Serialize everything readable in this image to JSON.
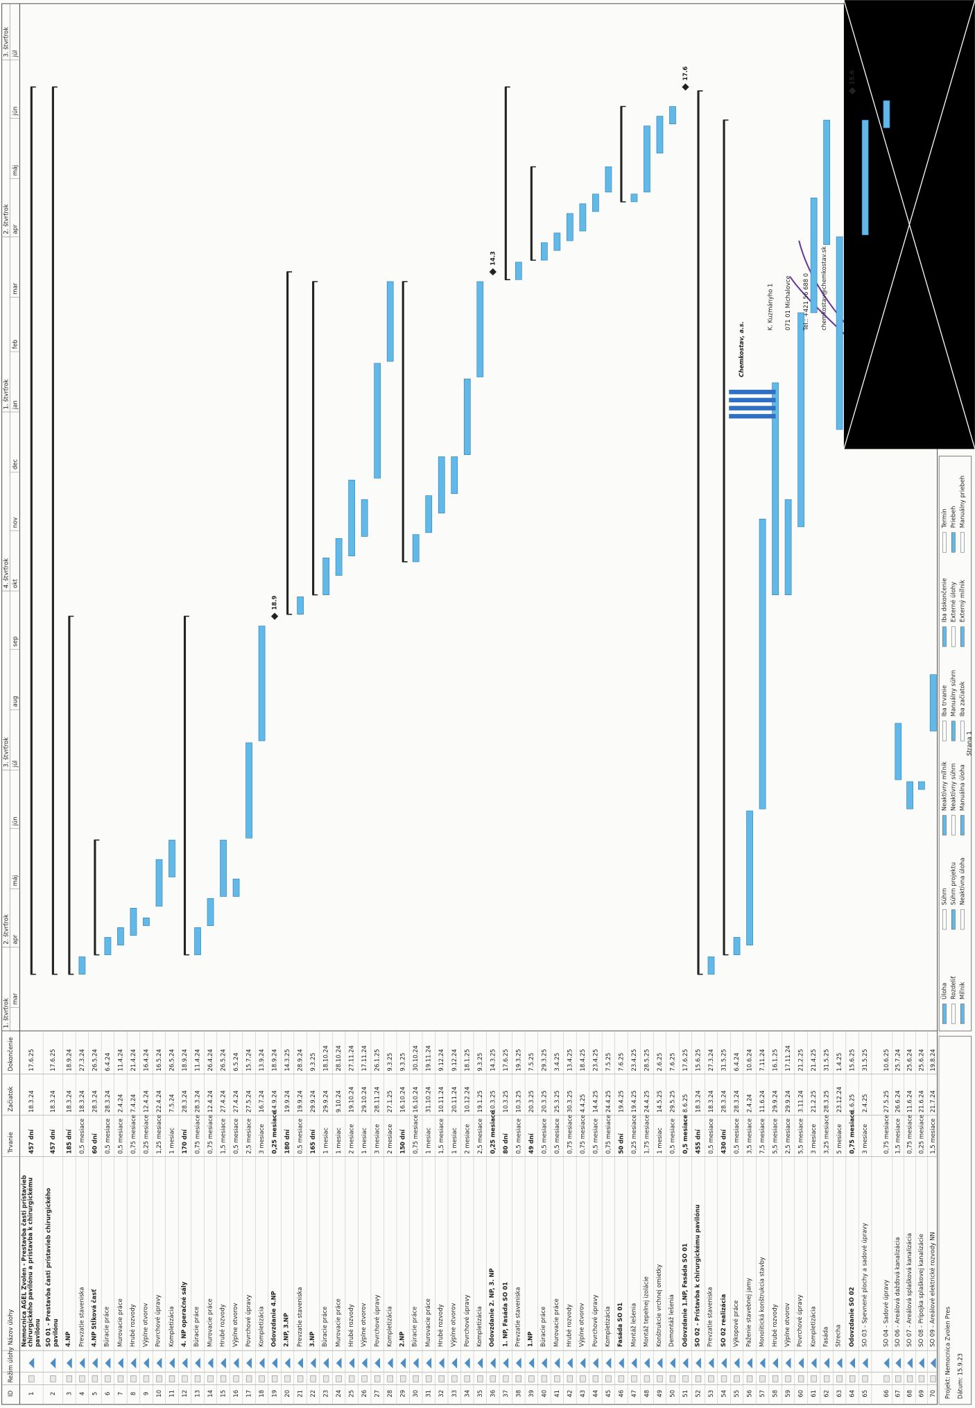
{
  "table": {
    "header": {
      "id": "ID",
      "mode": "Režim úlohy",
      "name": "Názov úlohy",
      "duration": "Trvanie",
      "start": "Začiatok",
      "finish": "Dokončenie"
    },
    "rows": [
      {
        "id": 1,
        "name": "Nemocnica AGEL Zvolen - Prestavba časti prístavieb chirurgického pavilónu a prístavba k chirurgickému pavilónu",
        "duration": "457 dní",
        "start": "18.3.24",
        "end": "17.6.25",
        "summary": true
      },
      {
        "id": 2,
        "name": "SO 01 - Prestavba časti prístavieb chirurgického pavilónu",
        "duration": "457 dní",
        "start": "18.3.24",
        "end": "17.6.25",
        "summary": true
      },
      {
        "id": 3,
        "name": "4.NP",
        "duration": "185 dní",
        "start": "18.3.24",
        "end": "18.9.24",
        "summary": true
      },
      {
        "id": 4,
        "name": "Prevzatie staveniska",
        "duration": "0,5 mesiace",
        "start": "18.3.24",
        "end": "27.3.24"
      },
      {
        "id": 5,
        "name": "4.NP Stĺková časť",
        "duration": "60 dní",
        "start": "28.3.24",
        "end": "26.5.24",
        "summary": true
      },
      {
        "id": 6,
        "name": "Búracie práce",
        "duration": "0,5 mesiace",
        "start": "28.3.24",
        "end": "6.4.24"
      },
      {
        "id": 7,
        "name": "Murovacie práce",
        "duration": "0,5 mesiace",
        "start": "2.4.24",
        "end": "11.4.24"
      },
      {
        "id": 8,
        "name": "Hrubé rozvody",
        "duration": "0,75 mesiace",
        "start": "7.4.24",
        "end": "21.4.24"
      },
      {
        "id": 9,
        "name": "Výplne otvorov",
        "duration": "0,25 mesiace",
        "start": "12.4.24",
        "end": "16.4.24"
      },
      {
        "id": 10,
        "name": "Povrchové úpravy",
        "duration": "1,25 mesiace",
        "start": "22.4.24",
        "end": "16.5.24"
      },
      {
        "id": 11,
        "name": "Kompletizácia",
        "duration": "1 mesiac",
        "start": "7.5.24",
        "end": "26.5.24"
      },
      {
        "id": 12,
        "name": "4. NP operačné sály",
        "duration": "170 dní",
        "start": "28.3.24",
        "end": "18.9.24",
        "summary": true
      },
      {
        "id": 13,
        "name": "Búracie práce",
        "duration": "0,75 mesiace",
        "start": "28.3.24",
        "end": "11.4.24"
      },
      {
        "id": 14,
        "name": "Murovacie práce",
        "duration": "0,75 mesiace",
        "start": "12.4.24",
        "end": "26.4.24"
      },
      {
        "id": 15,
        "name": "Hrubé rozvody",
        "duration": "1,5 mesiace",
        "start": "27.4.24",
        "end": "26.5.24"
      },
      {
        "id": 16,
        "name": "Výplne otvorov",
        "duration": "0,5 mesiace",
        "start": "27.4.24",
        "end": "6.5.24"
      },
      {
        "id": 17,
        "name": "Povrchové úpravy",
        "duration": "2,5 mesiace",
        "start": "27.5.24",
        "end": "15.7.24"
      },
      {
        "id": 18,
        "name": "Kompletizácia",
        "duration": "3 mesiace",
        "start": "16.7.24",
        "end": "13.9.24"
      },
      {
        "id": 19,
        "name": "Odovzdanie 4.NP",
        "duration": "0,25 mesiace",
        "start": "14.9.24",
        "end": "18.9.24",
        "summary": true,
        "label": "18.9"
      },
      {
        "id": 20,
        "name": "2.NP, 3.NP",
        "duration": "180 dní",
        "start": "19.9.24",
        "end": "14.3.25",
        "summary": true
      },
      {
        "id": 21,
        "name": "Prevzatie staveniska",
        "duration": "0,5 mesiace",
        "start": "19.9.24",
        "end": "28.9.24"
      },
      {
        "id": 22,
        "name": "3.NP",
        "duration": "165 dní",
        "start": "29.9.24",
        "end": "9.3.25",
        "summary": true
      },
      {
        "id": 23,
        "name": "Búracie práce",
        "duration": "1 mesiac",
        "start": "29.9.24",
        "end": "18.10.24"
      },
      {
        "id": 24,
        "name": "Murovacie práce",
        "duration": "1 mesiac",
        "start": "9.10.24",
        "end": "28.10.24"
      },
      {
        "id": 25,
        "name": "Hrubé rozvody",
        "duration": "2 mesiace",
        "start": "19.10.24",
        "end": "27.11.24"
      },
      {
        "id": 26,
        "name": "Výplne otvorov",
        "duration": "1 mesiac",
        "start": "29.10.24",
        "end": "17.11.24"
      },
      {
        "id": 27,
        "name": "Povrchové úpravy",
        "duration": "3 mesiace",
        "start": "28.11.24",
        "end": "26.1.25"
      },
      {
        "id": 28,
        "name": "Kompletizácia",
        "duration": "2 mesiace",
        "start": "27.1.25",
        "end": "9.3.25"
      },
      {
        "id": 29,
        "name": "2.NP",
        "duration": "150 dní",
        "start": "16.10.24",
        "end": "9.3.25",
        "summary": true
      },
      {
        "id": 30,
        "name": "Búracie práce",
        "duration": "0,75 mesiace",
        "start": "16.10.24",
        "end": "30.10.24"
      },
      {
        "id": 31,
        "name": "Murovacie práce",
        "duration": "1 mesiac",
        "start": "31.10.24",
        "end": "19.11.24"
      },
      {
        "id": 32,
        "name": "Hrubé rozvody",
        "duration": "1,5 mesiace",
        "start": "10.11.24",
        "end": "9.12.24"
      },
      {
        "id": 33,
        "name": "Výplne otvorov",
        "duration": "1 mesiac",
        "start": "20.11.24",
        "end": "9.12.24"
      },
      {
        "id": 34,
        "name": "Povrchové úpravy",
        "duration": "2 mesiace",
        "start": "10.12.24",
        "end": "18.1.25"
      },
      {
        "id": 35,
        "name": "Kompletizácia",
        "duration": "2,5 mesiace",
        "start": "19.1.25",
        "end": "9.3.25"
      },
      {
        "id": 36,
        "name": "Odovzdanie 2. NP, 3. NP",
        "duration": "0,25 mesiace",
        "start": "10.3.25",
        "end": "14.3.25",
        "summary": true,
        "label": "14.3"
      },
      {
        "id": 37,
        "name": "1. NP, Fasáda SO 01",
        "duration": "80 dní",
        "start": "10.3.25",
        "end": "17.6.25",
        "summary": true
      },
      {
        "id": 38,
        "name": "Prevzatie staveniska",
        "duration": "0,5 mesiace",
        "start": "10.3.25",
        "end": "19.3.25"
      },
      {
        "id": 39,
        "name": "1.NP",
        "duration": "49 dní",
        "start": "20.3.25",
        "end": "7.5.25",
        "summary": true
      },
      {
        "id": 40,
        "name": "Búracie práce",
        "duration": "0,5 mesiace",
        "start": "20.3.25",
        "end": "29.3.25"
      },
      {
        "id": 41,
        "name": "Murovacie práce",
        "duration": "0,5 mesiace",
        "start": "25.3.25",
        "end": "3.4.25"
      },
      {
        "id": 42,
        "name": "Hrubé rozvody",
        "duration": "0,75 mesiace",
        "start": "30.3.25",
        "end": "13.4.25"
      },
      {
        "id": 43,
        "name": "Výplne otvorov",
        "duration": "0,75 mesiace",
        "start": "4.4.25",
        "end": "18.4.25"
      },
      {
        "id": 44,
        "name": "Povrchové úpravy",
        "duration": "0,5 mesiace",
        "start": "14.4.25",
        "end": "23.4.25"
      },
      {
        "id": 45,
        "name": "Kompletizácia",
        "duration": "0,75 mesiace",
        "start": "24.4.25",
        "end": "7.5.25"
      },
      {
        "id": 46,
        "name": "Fasáda SO 01",
        "duration": "50 dní",
        "start": "19.4.25",
        "end": "7.6.25",
        "summary": true
      },
      {
        "id": 47,
        "name": "Montáž lešenia",
        "duration": "0,25 mesiace",
        "start": "19.4.25",
        "end": "23.4.25"
      },
      {
        "id": 48,
        "name": "Montáž tepelnej izolácie",
        "duration": "1,75 mesiace",
        "start": "24.4.25",
        "end": "28.5.25"
      },
      {
        "id": 49,
        "name": "Konštrukcie vrchnej omietky",
        "duration": "1 mesiac",
        "start": "14.5.25",
        "end": "2.6.25"
      },
      {
        "id": 50,
        "name": "Demontáž lešenia",
        "duration": "0,5 mesiace",
        "start": "29.5.25",
        "end": "7.6.25"
      },
      {
        "id": 51,
        "name": "Odovzdanie 1.NP, Fasáda SO 01",
        "duration": "0,5 mesiace",
        "start": "8.6.25",
        "end": "17.6.25",
        "summary": true,
        "label": "17.6"
      },
      {
        "id": 52,
        "name": "SO 02 - Prístavba k chirurgickému pavilónu",
        "duration": "455 dní",
        "start": "18.3.24",
        "end": "15.6.25",
        "summary": true
      },
      {
        "id": 53,
        "name": "Prevzatie staveniska",
        "duration": "0,5 mesiace",
        "start": "18.3.24",
        "end": "27.3.24"
      },
      {
        "id": 54,
        "name": "SO 02 realizácia",
        "duration": "430 dní",
        "start": "28.3.24",
        "end": "31.5.25",
        "summary": true
      },
      {
        "id": 55,
        "name": "Výkopové práce",
        "duration": "0,5 mesiace",
        "start": "28.3.24",
        "end": "6.4.24"
      },
      {
        "id": 56,
        "name": "Paženie stavebnej jamy",
        "duration": "3,5 mesiace",
        "start": "2.4.24",
        "end": "10.6.24"
      },
      {
        "id": 57,
        "name": "Monolitická konštrukcia stavby",
        "duration": "7,5 mesiace",
        "start": "11.6.24",
        "end": "7.11.24"
      },
      {
        "id": 58,
        "name": "Hrubé rozvody",
        "duration": "5,5 mesiace",
        "start": "29.9.24",
        "end": "16.1.25"
      },
      {
        "id": 59,
        "name": "Výplne otvorov",
        "duration": "2,5 mesiace",
        "start": "29.9.24",
        "end": "17.11.24"
      },
      {
        "id": 60,
        "name": "Povrchové úpravy",
        "duration": "5,5 mesiace",
        "start": "3.11.24",
        "end": "21.2.25"
      },
      {
        "id": 61,
        "name": "Kompletizácia",
        "duration": "3 mesiace",
        "start": "21.2.25",
        "end": "21.4.25"
      },
      {
        "id": 62,
        "name": "Fasáda",
        "duration": "3,25 mesiace",
        "start": "28.3.25",
        "end": "31.5.25"
      },
      {
        "id": 63,
        "name": "Strecha",
        "duration": "5 mesiace",
        "start": "23.12.24",
        "end": "1.4.25"
      },
      {
        "id": 64,
        "name": "Odovzdanie SO 02",
        "duration": "0,75 mesiace",
        "start": "1.6.25",
        "end": "15.6.25",
        "summary": true,
        "label": "15.6"
      },
      {
        "id": 65,
        "name": "SO 03 - Spevnené plochy a sadové úpravy",
        "duration": "3 mesiace",
        "start": "2.4.25",
        "end": "31.5.25"
      },
      {
        "id": 66,
        "name": "SO 04 - Sadové úpravy",
        "duration": "0,75 mesiace",
        "start": "27.5.25",
        "end": "10.6.25"
      },
      {
        "id": 67,
        "name": "SO 06 - Areálová dažďová kanalizácia",
        "duration": "1,5 mesiace",
        "start": "26.6.24",
        "end": "25.7.24"
      },
      {
        "id": 68,
        "name": "SO 07 - Areálová splašková kanalizácia",
        "duration": "0,75 mesiace",
        "start": "11.6.24",
        "end": "25.6.24"
      },
      {
        "id": 69,
        "name": "SO 08 - Prípojka splaškovej kanalizácie",
        "duration": "0,25 mesiace",
        "start": "21.6.24",
        "end": "25.6.24"
      },
      {
        "id": 70,
        "name": "SO 09 - Areálové elektrické rozvody NN",
        "duration": "1,5 mesiace",
        "start": "21.7.24",
        "end": "19.8.24"
      }
    ]
  },
  "timescale": {
    "quarters": [
      "1. štvrťrok",
      "2. štvrťrok",
      "3. štvrťrok",
      "4. štvrťrok",
      "1. štvrťrok",
      "2. štvrťrok",
      "3. štvrťrok"
    ],
    "months": [
      "mar",
      "apr",
      "máj",
      "jún",
      "júl",
      "aug",
      "sep",
      "okt",
      "nov",
      "dec",
      "jan",
      "feb",
      "mar",
      "apr",
      "máj",
      "jún",
      "júl"
    ]
  },
  "footer": {
    "project": "Projekt: Nemocnica Zvolen Pres",
    "date": "Dátum: 15.9.23",
    "page": "Strana 1",
    "legend": [
      "Úloha",
      "Rozdeliť",
      "Míľnik",
      "Súhrn",
      "Súhrn projektu",
      "Neaktívna úloha",
      "Neaktívny míľnik",
      "Neaktívny súhrn",
      "Manuálna úloha",
      "Iba trvanie",
      "Manuálny súhrn",
      "Iba začiatok",
      "Iba dokončenie",
      "Externé úlohy",
      "Externý míľnik",
      "Termín",
      "Priebeh",
      "Manuálny priebeh"
    ]
  },
  "stamp": {
    "company": "Chemkostav, a.s.",
    "lines": [
      "K. Kuzmányho 1",
      "071 01 Michalovce",
      "Tel.: +421 56 688 0",
      "chemkostav@chemkostav.sk"
    ]
  }
}
